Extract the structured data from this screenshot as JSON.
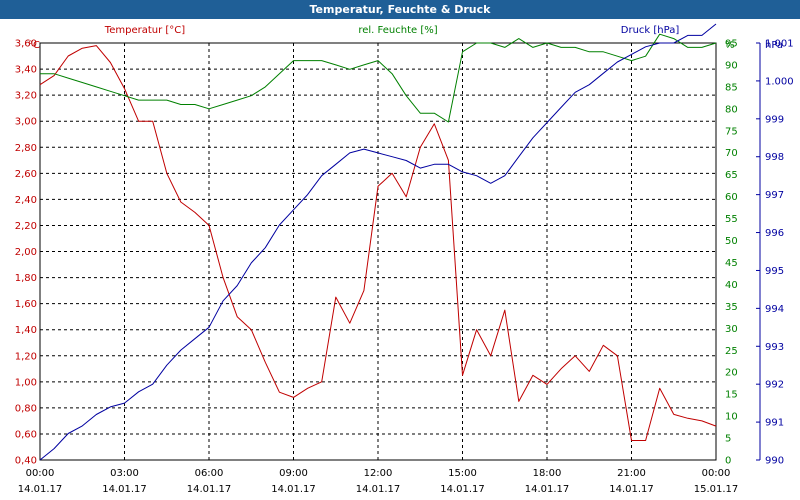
{
  "window": {
    "title": "Temperatur, Feuchte & Druck"
  },
  "colors": {
    "temperature": "#c00000",
    "humidity": "#008000",
    "pressure": "#0000a0",
    "axis_text": "#000000"
  },
  "chart_data": {
    "type": "line",
    "title": "Temperatur, Feuchte & Druck",
    "grid": true,
    "x_ticks": [
      {
        "time": "00:00",
        "date": "14.01.17"
      },
      {
        "time": "03:00",
        "date": "14.01.17"
      },
      {
        "time": "06:00",
        "date": "14.01.17"
      },
      {
        "time": "09:00",
        "date": "14.01.17"
      },
      {
        "time": "12:00",
        "date": "14.01.17"
      },
      {
        "time": "15:00",
        "date": "14.01.17"
      },
      {
        "time": "18:00",
        "date": "14.01.17"
      },
      {
        "time": "21:00",
        "date": "14.01.17"
      },
      {
        "time": "00:00",
        "date": "15.01.17"
      }
    ],
    "axes": {
      "left": {
        "unit": "°C",
        "min": 0.4,
        "max": 3.6,
        "step": 0.2,
        "ticks": [
          "0,40",
          "0,60",
          "0,80",
          "1,00",
          "1,20",
          "1,40",
          "1,60",
          "1,80",
          "2,00",
          "2,20",
          "2,40",
          "2,60",
          "2,80",
          "3,00",
          "3,20",
          "3,40",
          "3,60"
        ]
      },
      "middle": {
        "unit": "%",
        "min": 0,
        "max": 95,
        "step": 5,
        "ticks": [
          "0",
          "5",
          "10",
          "15",
          "20",
          "25",
          "30",
          "35",
          "40",
          "45",
          "50",
          "55",
          "60",
          "65",
          "70",
          "75",
          "80",
          "85",
          "90",
          "95"
        ]
      },
      "right": {
        "unit": "hPa",
        "min": 990,
        "max": 1001,
        "step": 1,
        "ticks": [
          "990",
          "991",
          "992",
          "993",
          "994",
          "995",
          "996",
          "997",
          "998",
          "999",
          "1.000",
          "1.001"
        ]
      }
    },
    "series": [
      {
        "name": "Temperatur [°C]",
        "axis": "left",
        "x_hours": [
          0,
          0.5,
          1,
          1.5,
          2,
          2.5,
          3,
          3.5,
          4,
          4.5,
          5,
          5.5,
          6,
          6.5,
          7,
          7.5,
          8,
          8.5,
          9,
          9.5,
          10,
          10.5,
          11,
          11.5,
          12,
          12.5,
          13,
          13.5,
          14,
          14.5,
          15,
          15.5,
          16,
          16.5,
          17,
          17.5,
          18,
          18.5,
          19,
          19.5,
          20,
          20.5,
          21,
          21.5,
          22,
          22.5,
          23,
          23.5,
          24
        ],
        "values": [
          3.28,
          3.35,
          3.5,
          3.56,
          3.58,
          3.45,
          3.25,
          3.0,
          3.0,
          2.6,
          2.38,
          2.3,
          2.2,
          1.8,
          1.5,
          1.4,
          1.15,
          0.92,
          0.88,
          0.95,
          1.0,
          1.65,
          1.45,
          1.7,
          2.5,
          2.6,
          2.42,
          2.8,
          2.98,
          2.7,
          1.05,
          1.4,
          1.2,
          1.55,
          0.85,
          1.05,
          0.98,
          1.1,
          1.2,
          1.08,
          1.28,
          1.2,
          0.55,
          0.55,
          0.95,
          0.75,
          0.72,
          0.7,
          0.66
        ]
      },
      {
        "name": "rel. Feuchte [%]",
        "axis": "middle",
        "x_hours": [
          0,
          0.5,
          1,
          1.5,
          2,
          2.5,
          3,
          3.5,
          4,
          4.5,
          5,
          5.5,
          6,
          6.5,
          7,
          7.5,
          8,
          8.5,
          9,
          9.5,
          10,
          10.5,
          11,
          11.5,
          12,
          12.5,
          13,
          13.5,
          14,
          14.5,
          15,
          15.5,
          16,
          16.5,
          17,
          17.5,
          18,
          18.5,
          19,
          19.5,
          20,
          20.5,
          21,
          21.5,
          22,
          22.5,
          23,
          23.5,
          24
        ],
        "values": [
          88,
          88,
          87,
          86,
          85,
          84,
          83,
          82,
          82,
          82,
          81,
          81,
          80,
          81,
          82,
          83,
          85,
          88,
          91,
          91,
          91,
          90,
          89,
          90,
          91,
          88,
          83,
          79,
          79,
          77,
          93,
          95,
          95,
          94,
          96,
          94,
          95,
          94,
          94,
          93,
          93,
          92,
          91,
          92,
          97,
          96,
          94,
          94,
          95
        ]
      },
      {
        "name": "Druck [hPa]",
        "axis": "right",
        "x_hours": [
          0,
          0.5,
          1,
          1.5,
          2,
          2.5,
          3,
          3.5,
          4,
          4.5,
          5,
          5.5,
          6,
          6.5,
          7,
          7.5,
          8,
          8.5,
          9,
          9.5,
          10,
          10.5,
          11,
          11.5,
          12,
          12.5,
          13,
          13.5,
          14,
          14.5,
          15,
          15.5,
          16,
          16.5,
          17,
          17.5,
          18,
          18.5,
          19,
          19.5,
          20,
          20.5,
          21,
          21.5,
          22,
          22.5,
          23,
          23.5,
          24
        ],
        "values": [
          990.0,
          990.3,
          990.7,
          990.9,
          991.2,
          991.4,
          991.5,
          991.8,
          992.0,
          992.5,
          992.9,
          993.2,
          993.5,
          994.2,
          994.6,
          995.2,
          995.6,
          996.2,
          996.6,
          997.0,
          997.5,
          997.8,
          998.1,
          998.2,
          998.1,
          998.0,
          997.9,
          997.7,
          997.8,
          997.8,
          997.6,
          997.5,
          997.3,
          997.5,
          998.0,
          998.5,
          998.9,
          999.3,
          999.7,
          999.9,
          1000.2,
          1000.5,
          1000.7,
          1000.9,
          1001.0,
          1001.0,
          1001.2,
          1001.2,
          1001.5
        ]
      }
    ]
  }
}
